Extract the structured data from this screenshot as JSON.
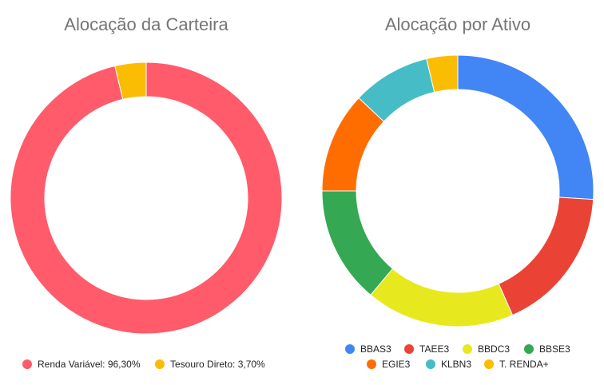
{
  "chart_data": [
    {
      "type": "pie",
      "title": "Alocação da Carteira",
      "donut": true,
      "legend_position": "bottom",
      "slices": [
        {
          "label": "Renda Variável",
          "value": 96.3,
          "legend": "Renda Variável: 96,30%",
          "color": "#ff5b6b"
        },
        {
          "label": "Tesouro Direto",
          "value": 3.7,
          "legend": "Tesouro Direto: 3,70%",
          "color": "#fbbc04"
        }
      ]
    },
    {
      "type": "pie",
      "title": "Alocação por Ativo",
      "donut": true,
      "legend_position": "bottom",
      "slices": [
        {
          "label": "BBAS3",
          "value": 26.0,
          "legend": "BBAS3",
          "color": "#4285f4"
        },
        {
          "label": "TAEE3",
          "value": 17.4,
          "legend": "TAEE3",
          "color": "#ea4335"
        },
        {
          "label": "BBDC3",
          "value": 17.7,
          "legend": "BBDC3",
          "color": "#e8e81e"
        },
        {
          "label": "BBSE3",
          "value": 13.9,
          "legend": "BBSE3",
          "color": "#34a853"
        },
        {
          "label": "EGIE3",
          "value": 12.0,
          "legend": "EGIE3",
          "color": "#ff6d01"
        },
        {
          "label": "KLBN3",
          "value": 9.3,
          "legend": "KLBN3",
          "color": "#46bdc6"
        },
        {
          "label": "T. RENDA+",
          "value": 3.7,
          "legend": "T. RENDA+",
          "color": "#fbbc04"
        }
      ]
    }
  ]
}
